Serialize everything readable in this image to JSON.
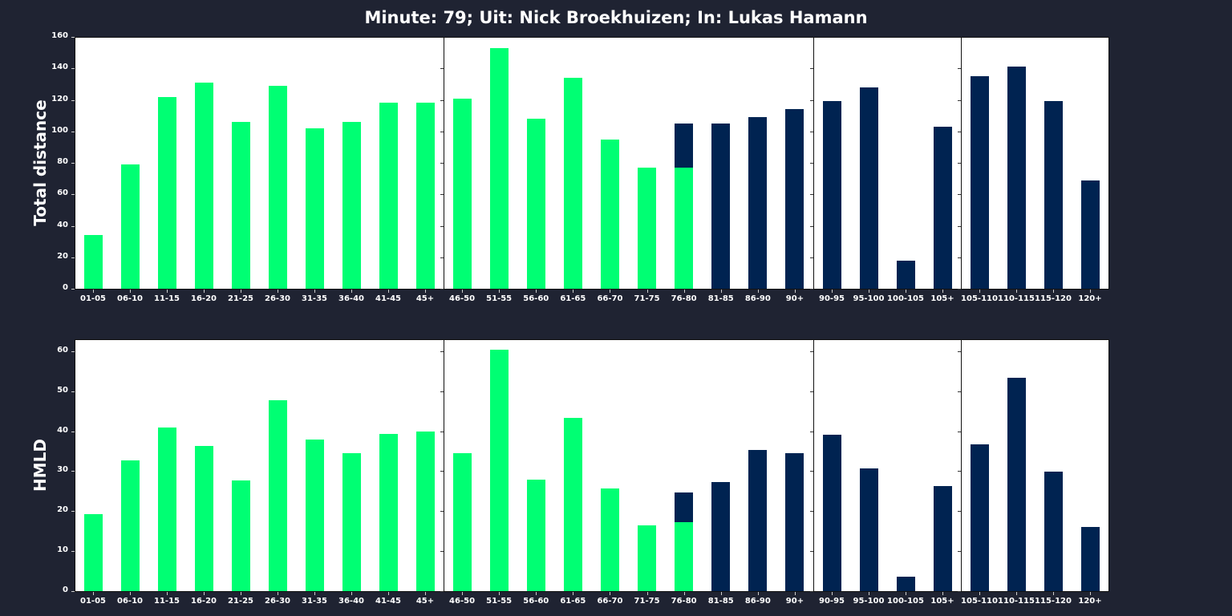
{
  "title": "Minute: 79; Uit: Nick Broekhuizen; In: Lukas Hamann",
  "colors": {
    "background": "#1f2332",
    "player_out": "#00ff73",
    "player_in": "#002351",
    "panel": "#ffffff"
  },
  "chart_data": [
    {
      "type": "bar",
      "title": "Minute: 79; Uit: Nick Broekhuizen; In: Lukas Hamann",
      "ylabel": "Total distance",
      "xlabel": "",
      "ylim": [
        0,
        160
      ],
      "yticks": [
        0,
        20,
        40,
        60,
        80,
        100,
        120,
        140,
        160
      ],
      "grid": false,
      "stacked": true,
      "segments": [
        {
          "categories": [
            "01-05",
            "06-10",
            "11-15",
            "16-20",
            "21-25",
            "26-30",
            "31-35",
            "36-40",
            "41-45",
            "45+"
          ],
          "series": [
            {
              "name": "Nick Broekhuizen",
              "color": "#00ff73",
              "values": [
                34,
                79,
                122,
                131,
                106,
                129,
                102,
                106,
                118,
                118
              ]
            },
            {
              "name": "Lukas Hamann",
              "color": "#002351",
              "values": [
                0,
                0,
                0,
                0,
                0,
                0,
                0,
                0,
                0,
                0
              ]
            }
          ]
        },
        {
          "categories": [
            "46-50",
            "51-55",
            "56-60",
            "61-65",
            "66-70",
            "71-75",
            "76-80",
            "81-85",
            "86-90",
            "90+"
          ],
          "series": [
            {
              "name": "Nick Broekhuizen",
              "color": "#00ff73",
              "values": [
                121,
                153,
                108,
                134,
                95,
                77,
                77,
                0,
                0,
                0
              ]
            },
            {
              "name": "Lukas Hamann",
              "color": "#002351",
              "values": [
                0,
                0,
                0,
                0,
                0,
                0,
                28,
                105,
                109,
                114
              ]
            }
          ]
        },
        {
          "categories": [
            "90-95",
            "95-100",
            "100-105",
            "105+"
          ],
          "series": [
            {
              "name": "Nick Broekhuizen",
              "color": "#00ff73",
              "values": [
                0,
                0,
                0,
                0
              ]
            },
            {
              "name": "Lukas Hamann",
              "color": "#002351",
              "values": [
                119,
                128,
                18,
                103
              ]
            }
          ]
        },
        {
          "categories": [
            "105-110",
            "110-115",
            "115-120",
            "120+"
          ],
          "series": [
            {
              "name": "Nick Broekhuizen",
              "color": "#00ff73",
              "values": [
                0,
                0,
                0,
                0
              ]
            },
            {
              "name": "Lukas Hamann",
              "color": "#002351",
              "values": [
                135,
                141,
                119,
                69
              ]
            }
          ]
        }
      ]
    },
    {
      "type": "bar",
      "ylabel": "HMLD",
      "xlabel": "",
      "ylim": [
        0,
        63
      ],
      "yticks": [
        0,
        10,
        20,
        30,
        40,
        50,
        60
      ],
      "grid": false,
      "stacked": true,
      "segments": [
        {
          "categories": [
            "01-05",
            "06-10",
            "11-15",
            "16-20",
            "21-25",
            "26-30",
            "31-35",
            "36-40",
            "41-45",
            "45+"
          ],
          "series": [
            {
              "name": "Nick Broekhuizen",
              "color": "#00ff73",
              "values": [
                19.2,
                32.8,
                40.9,
                36.4,
                27.6,
                47.8,
                38.0,
                34.5,
                39.4,
                40.0
              ]
            },
            {
              "name": "Lukas Hamann",
              "color": "#002351",
              "values": [
                0,
                0,
                0,
                0,
                0,
                0,
                0,
                0,
                0,
                0
              ]
            }
          ]
        },
        {
          "categories": [
            "46-50",
            "51-55",
            "56-60",
            "61-65",
            "66-70",
            "71-75",
            "76-80",
            "81-85",
            "86-90",
            "90+"
          ],
          "series": [
            {
              "name": "Nick Broekhuizen",
              "color": "#00ff73",
              "values": [
                34.6,
                60.3,
                27.8,
                43.4,
                25.6,
                16.5,
                17.3,
                0,
                0,
                0
              ]
            },
            {
              "name": "Lukas Hamann",
              "color": "#002351",
              "values": [
                0,
                0,
                0,
                0,
                0,
                0,
                7.4,
                27.3,
                35.4,
                34.6
              ]
            }
          ]
        },
        {
          "categories": [
            "90-95",
            "95-100",
            "100-105",
            "105+"
          ],
          "series": [
            {
              "name": "Nick Broekhuizen",
              "color": "#00ff73",
              "values": [
                0,
                0,
                0,
                0
              ]
            },
            {
              "name": "Lukas Hamann",
              "color": "#002351",
              "values": [
                39.1,
                30.7,
                3.6,
                26.2
              ]
            }
          ]
        },
        {
          "categories": [
            "105-110",
            "110-115",
            "115-120",
            "120+"
          ],
          "series": [
            {
              "name": "Nick Broekhuizen",
              "color": "#00ff73",
              "values": [
                0,
                0,
                0,
                0
              ]
            },
            {
              "name": "Lukas Hamann",
              "color": "#002351",
              "values": [
                36.7,
                53.3,
                29.8,
                16.0
              ]
            }
          ]
        }
      ]
    }
  ]
}
